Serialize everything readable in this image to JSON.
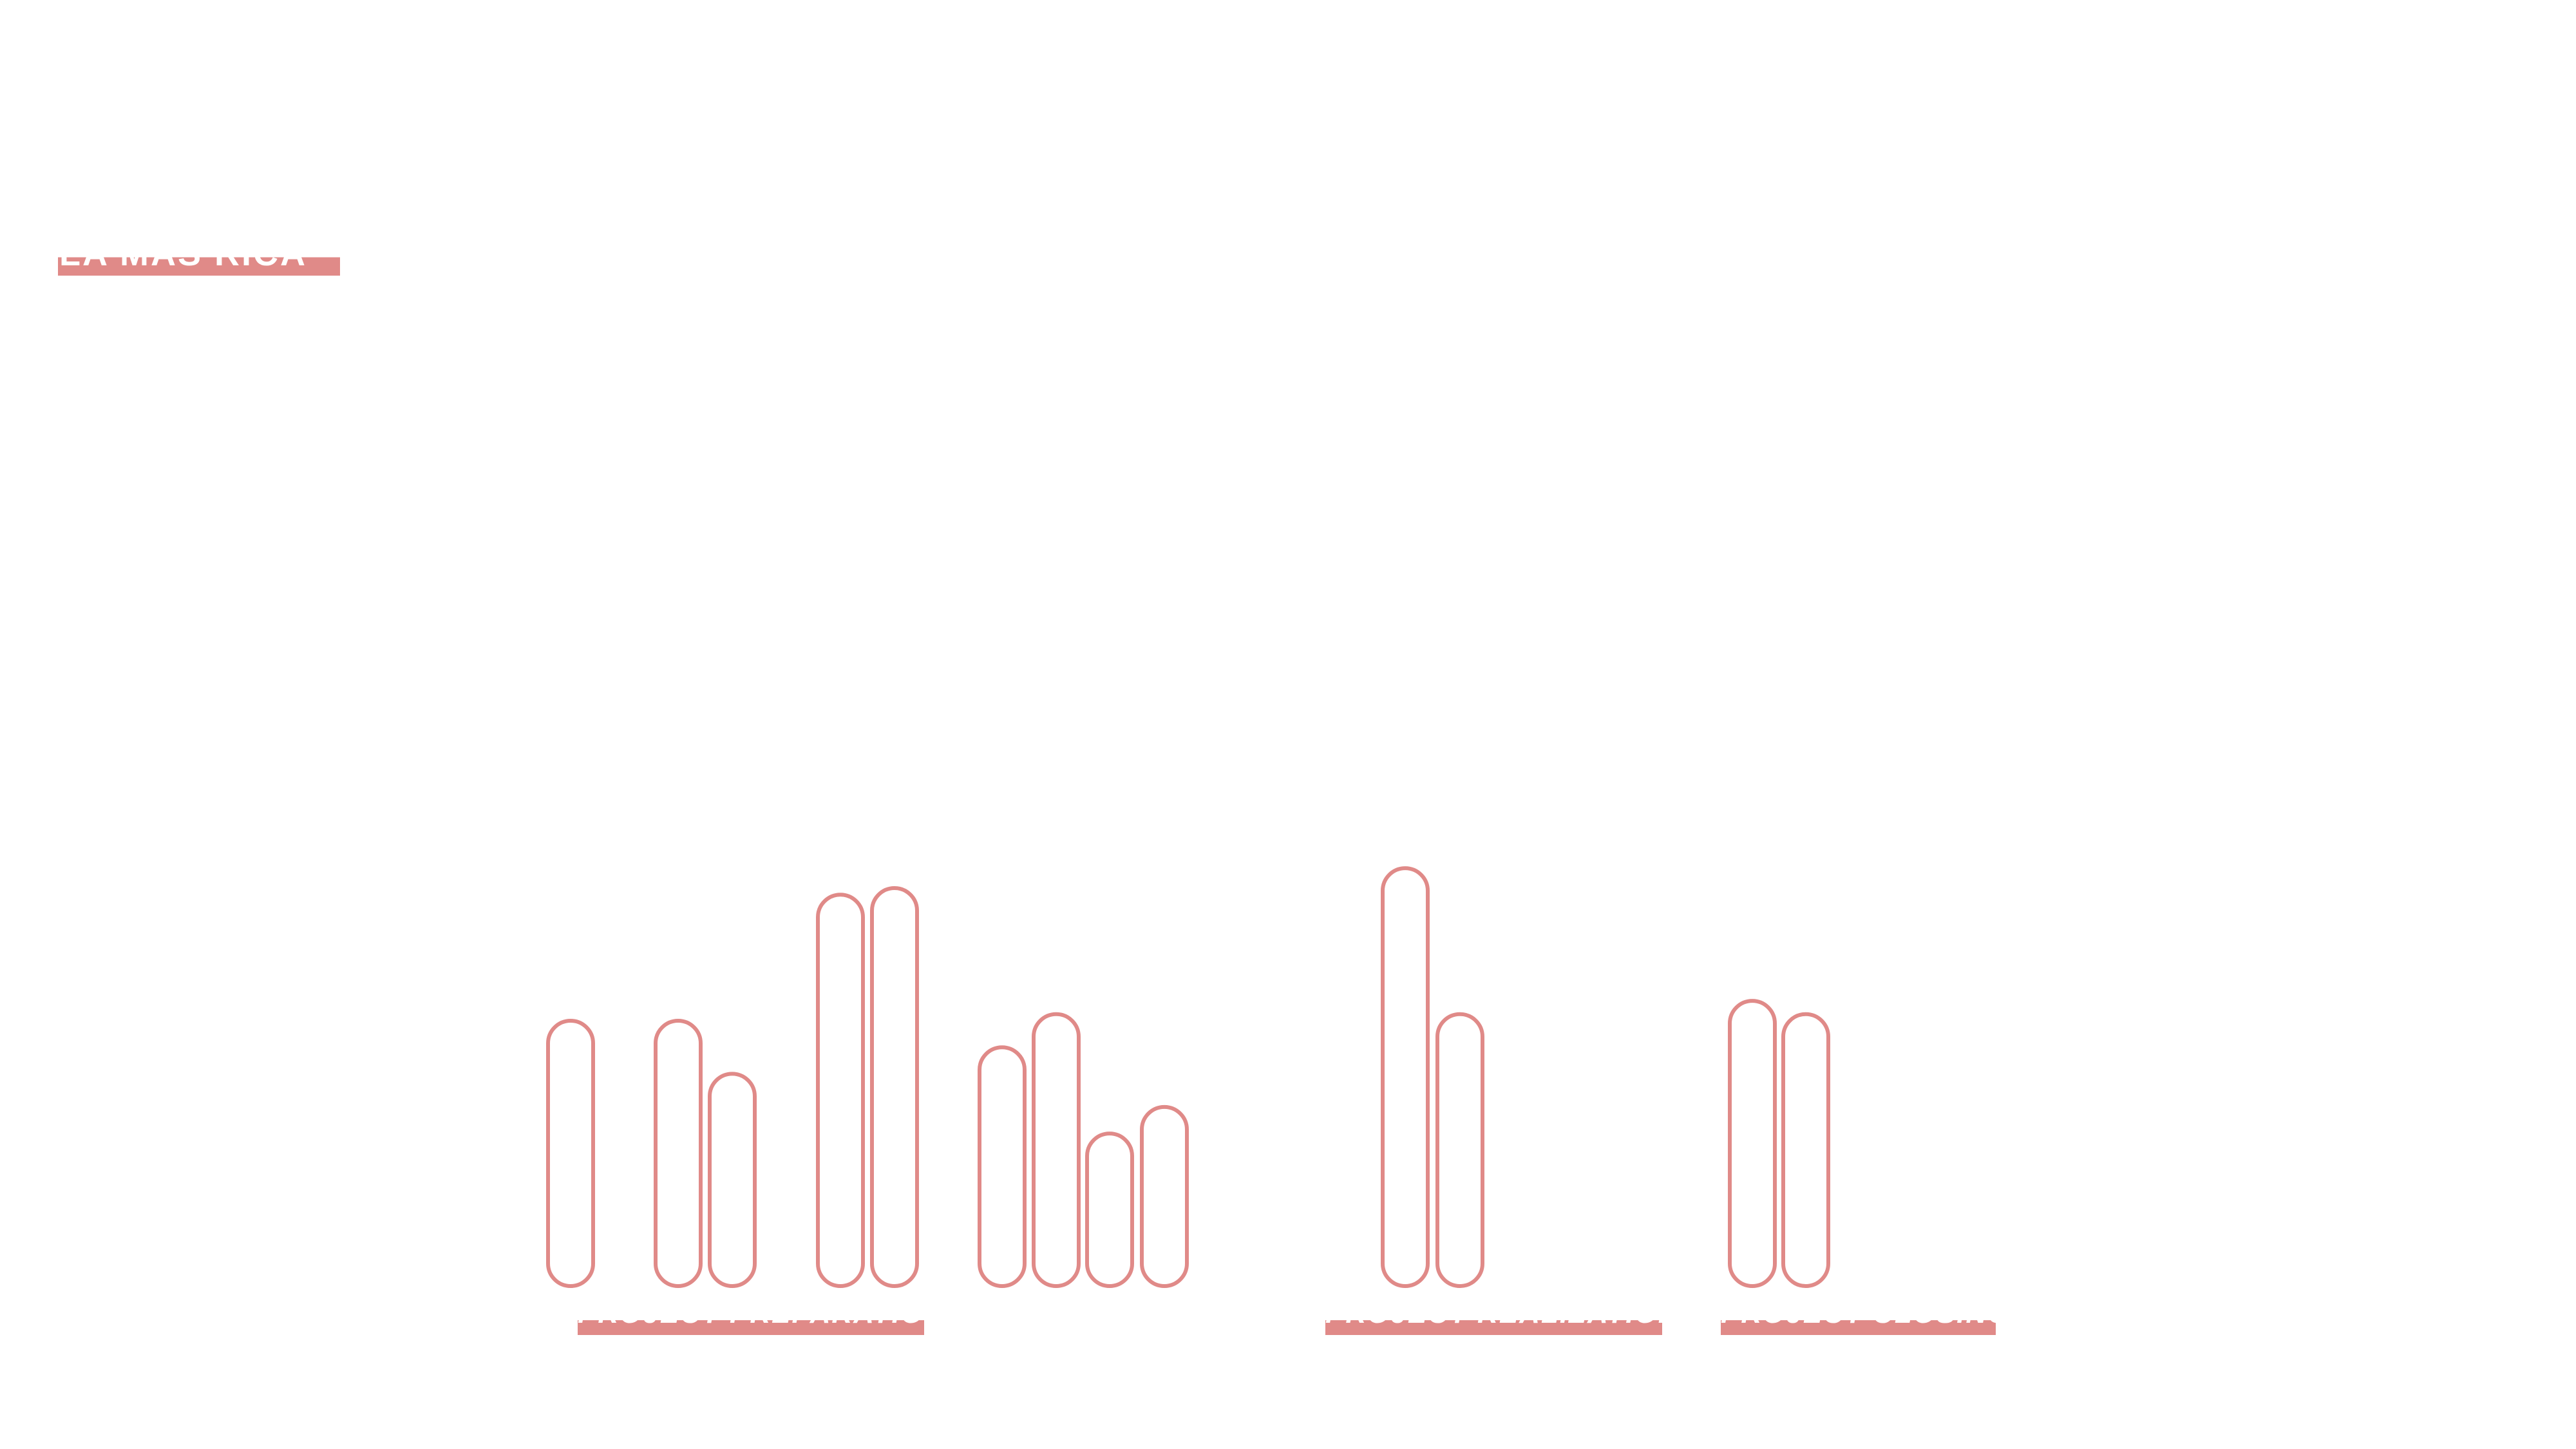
{
  "header": {
    "title": "LA MAS RICA"
  },
  "colors": {
    "accent": "#e08a88",
    "background": "#ffffff",
    "label_text": "#ffffff"
  },
  "chart_data": {
    "type": "bar",
    "style": "outlined rounded bars, no axes, no gridlines, no legend",
    "title": "",
    "xlabel": "",
    "ylabel": "",
    "grid": false,
    "ylim": [
      0,
      100
    ],
    "groups": [
      {
        "label": "PROJECT PREPARATION",
        "bars": [
          {
            "value": 40
          },
          {
            "value": 40
          },
          {
            "value": 32
          },
          {
            "value": 59
          },
          {
            "value": 60
          },
          {
            "value": 36
          },
          {
            "value": 41
          },
          {
            "value": 23
          },
          {
            "value": 27
          }
        ]
      },
      {
        "label": "PROJECT REALIZATION",
        "bars": [
          {
            "value": 63
          },
          {
            "value": 41
          }
        ]
      },
      {
        "label": "PROJECT CLOSING",
        "bars": [
          {
            "value": 43
          },
          {
            "value": 41
          }
        ]
      }
    ]
  }
}
